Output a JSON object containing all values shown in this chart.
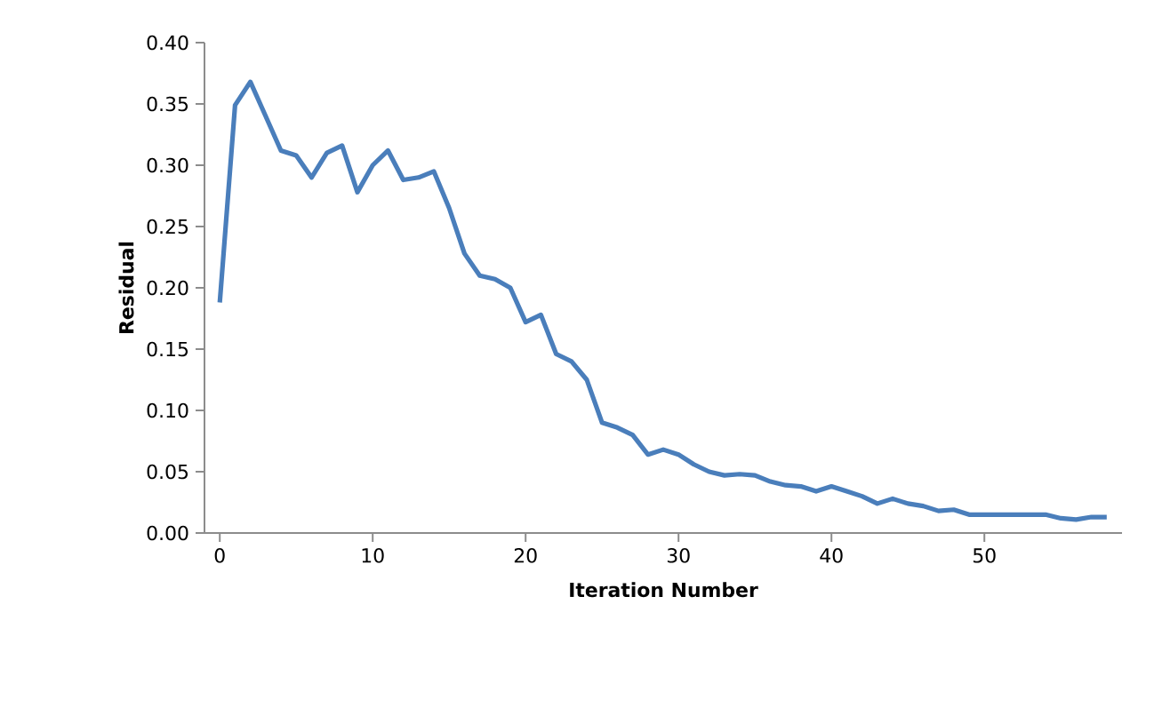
{
  "chart_data": {
    "type": "line",
    "xlabel": "Iteration Number",
    "ylabel": "Residual",
    "x": [
      0,
      1,
      2,
      3,
      4,
      5,
      6,
      7,
      8,
      9,
      10,
      11,
      12,
      13,
      14,
      15,
      16,
      17,
      18,
      19,
      20,
      21,
      22,
      23,
      24,
      25,
      26,
      27,
      28,
      29,
      30,
      31,
      32,
      33,
      34,
      35,
      36,
      37,
      38,
      39,
      40,
      41,
      42,
      43,
      44,
      45,
      46,
      47,
      48,
      49,
      50,
      51,
      52,
      53,
      54,
      55,
      56,
      57,
      58
    ],
    "series": [
      {
        "color": "#4a7ebb",
        "values": [
          0.188,
          0.349,
          0.368,
          0.34,
          0.312,
          0.308,
          0.29,
          0.31,
          0.316,
          0.278,
          0.3,
          0.312,
          0.288,
          0.29,
          0.295,
          0.265,
          0.228,
          0.21,
          0.207,
          0.2,
          0.172,
          0.178,
          0.146,
          0.14,
          0.125,
          0.09,
          0.086,
          0.08,
          0.064,
          0.068,
          0.064,
          0.056,
          0.05,
          0.047,
          0.048,
          0.047,
          0.042,
          0.039,
          0.038,
          0.034,
          0.038,
          0.034,
          0.03,
          0.024,
          0.028,
          0.024,
          0.022,
          0.018,
          0.019,
          0.015,
          0.015,
          0.015,
          0.015,
          0.015,
          0.015,
          0.012,
          0.011,
          0.013,
          0.013
        ]
      }
    ],
    "xlim": [
      -1,
      59
    ],
    "xticks": [
      0,
      10,
      20,
      30,
      40,
      50
    ],
    "ylim": [
      0,
      0.4
    ],
    "yticks": [
      {
        "value": 0,
        "label": "0.00"
      },
      {
        "value": 0.05,
        "label": "0.05"
      },
      {
        "value": 0.1,
        "label": "0.10"
      },
      {
        "value": 0.15,
        "label": "0.15"
      },
      {
        "value": 0.2,
        "label": "0.20"
      },
      {
        "value": 0.25,
        "label": "0.25"
      },
      {
        "value": 0.3,
        "label": "0.30"
      },
      {
        "value": 0.35,
        "label": "0.35"
      },
      {
        "value": 0.4,
        "label": "0.40"
      }
    ],
    "grid": false,
    "legend": false,
    "marker": "none",
    "line_style": "solid"
  }
}
